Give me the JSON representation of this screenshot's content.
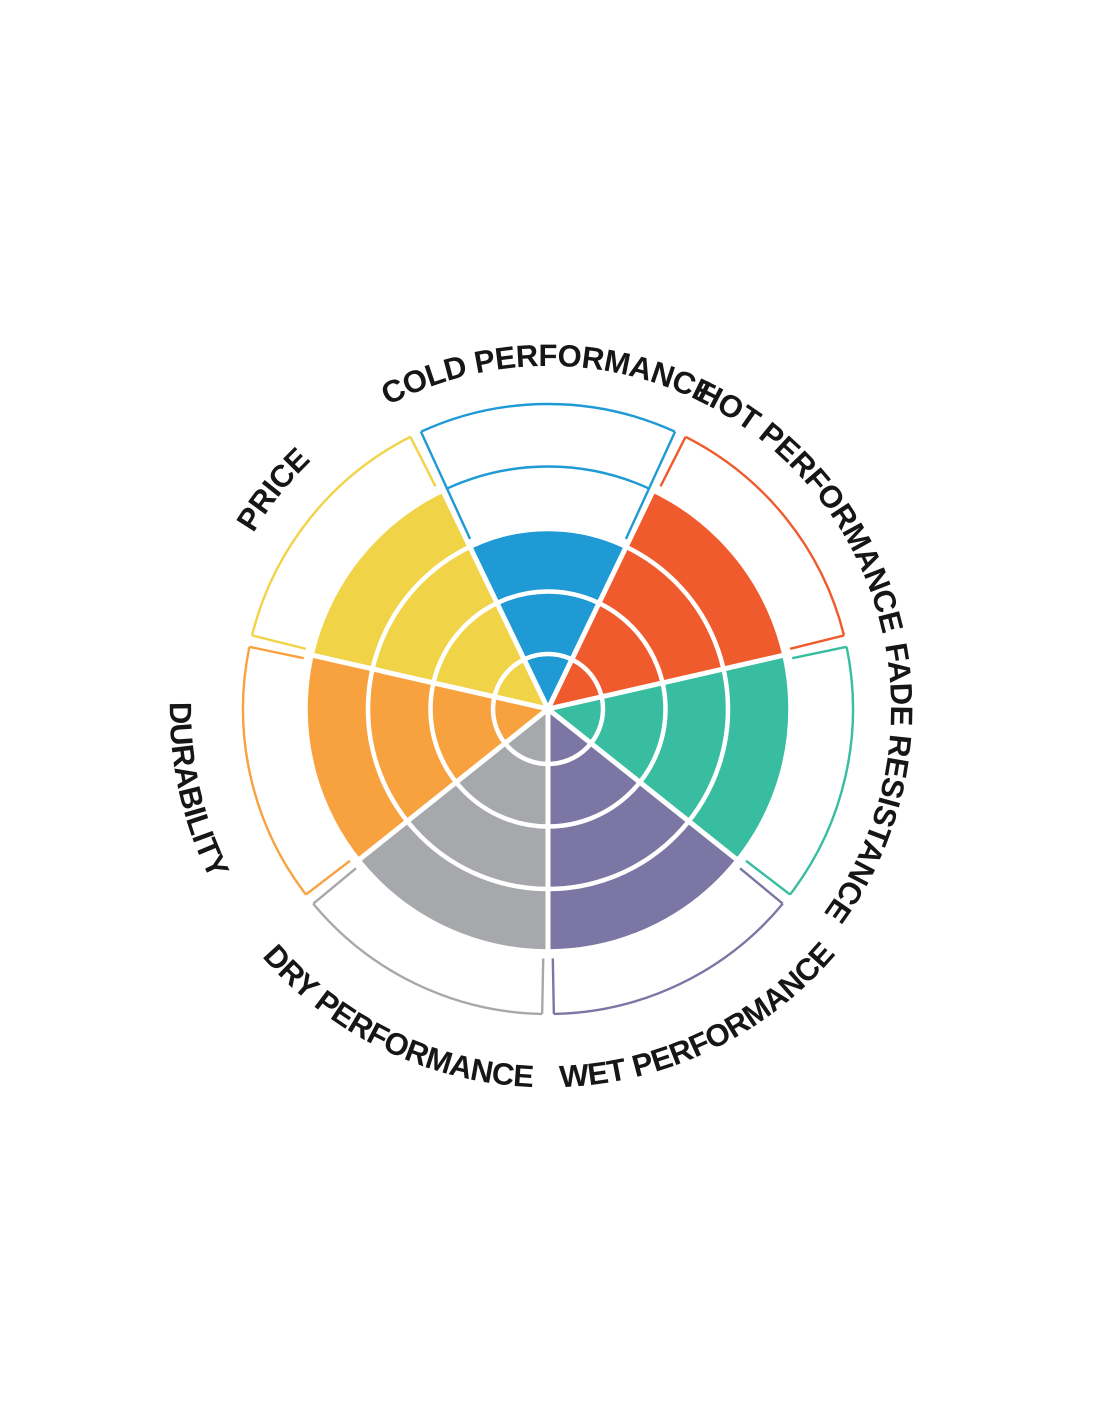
{
  "chart_data": {
    "type": "polar-bar",
    "description": "Radial wheel rating chart with 7 equal sectors, each filled from the center to its score on a 0-5 ring scale; unfilled remainder of each sector is outlined in the sector color up to the outer rim.",
    "scale": {
      "min": 0,
      "max": 5,
      "rings": 5
    },
    "start": "top",
    "direction": "clockwise",
    "categories": [
      "COLD PERFORMANCE",
      "HOT PERFORMANCE",
      "FADE RESISTANCE",
      "WET PERFORMANCE",
      "DRY PERFORMANCE",
      "DURABILITY",
      "PRICE"
    ],
    "series": [
      {
        "name": "rating",
        "values": [
          3,
          4,
          4,
          4,
          4,
          4,
          4
        ]
      }
    ],
    "colors": [
      "#1f9ad4",
      "#f05b2e",
      "#38bda1",
      "#7c76a4",
      "#a7a8ab",
      "#f8a23f",
      "#f1d348"
    ],
    "grid": {
      "ring_line_color": "#ffffff",
      "separator_color": "#ffffff",
      "background": "#ffffff",
      "legend": "none"
    }
  }
}
